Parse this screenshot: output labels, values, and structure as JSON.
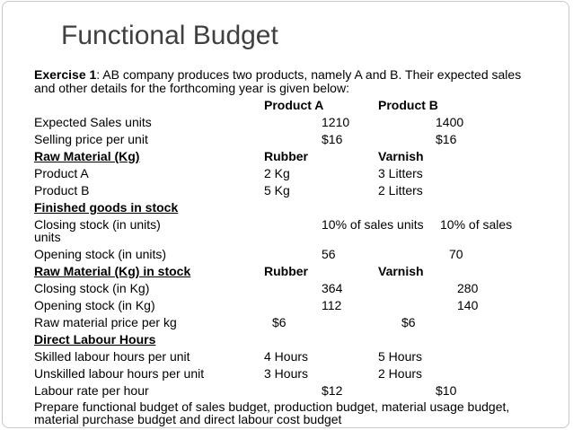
{
  "title": "Functional Budget",
  "exercise": {
    "label": "Exercise 1",
    "text_line1": ": AB company produces two products, namely A and B. Their expected sales",
    "text_line2": "and other details for the forthcoming year is given below:"
  },
  "header": {
    "col_a": "Product A",
    "col_b": "Product B"
  },
  "rows": {
    "sales_units": {
      "label": "Expected Sales units",
      "a": "1210",
      "b": "1400"
    },
    "selling_price": {
      "label": "Selling price per unit",
      "a": "$16",
      "b": "$16"
    },
    "raw_material": {
      "label": "Raw Material (Kg)",
      "c1": "Rubber",
      "c2": "Varnish"
    },
    "product_a": {
      "label": "Product A",
      "c1": "2 Kg",
      "c2": "3 Litters"
    },
    "product_b": {
      "label": "Product B",
      "c1": "5 Kg",
      "c2": "2 Litters"
    },
    "finished_goods": {
      "label": "Finished goods in stock"
    },
    "closing_units": {
      "label": "Closing stock (in units)",
      "a": "10% of sales units",
      "b": "10% of sales",
      "wrap": "units"
    },
    "opening_units": {
      "label": "Opening stock (in units)",
      "a": "56",
      "b": "70"
    },
    "raw_stock": {
      "label": "Raw Material (Kg) in stock",
      "c1": "Rubber",
      "c2": "Varnish"
    },
    "closing_kg": {
      "label": "Closing stock (in Kg)",
      "a": "364",
      "b": "280"
    },
    "opening_kg": {
      "label": "Opening  stock (in Kg)",
      "a": "112",
      "b": "140"
    },
    "rm_price": {
      "label": "Raw material price per kg",
      "a": "$6",
      "b": "$6"
    },
    "labour_hours": {
      "label": "Direct Labour Hours"
    },
    "skilled": {
      "label": "Skilled labour hours per unit",
      "c1": "4 Hours",
      "c2": "5 Hours"
    },
    "unskilled": {
      "label": "Unskilled labour hours per unit",
      "c1": "3 Hours",
      "c2": "2 Hours"
    },
    "labour_rate": {
      "label": "Labour rate per hour",
      "a": "$12",
      "b": "$10"
    }
  },
  "instruction": {
    "line1": "Prepare functional budget of sales budget, production budget, material usage budget,",
    "line2": "material purchase budget and direct labour cost budget"
  }
}
